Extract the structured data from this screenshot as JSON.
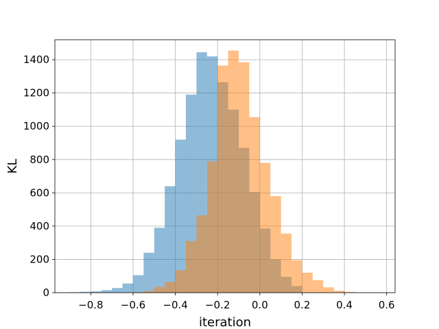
{
  "chart_data": {
    "type": "bar",
    "subtype": "histogram",
    "xlabel": "iteration",
    "ylabel": "KL",
    "xlim": [
      -0.97,
      0.64
    ],
    "ylim": [
      0,
      1520
    ],
    "xticks": [
      -0.8,
      -0.6,
      -0.4,
      -0.2,
      0.0,
      0.2,
      0.4,
      0.6
    ],
    "xtick_labels": [
      "−0.8",
      "−0.6",
      "−0.4",
      "−0.2",
      "0.0",
      "0.2",
      "0.4",
      "0.6"
    ],
    "yticks": [
      0,
      200,
      400,
      600,
      800,
      1000,
      1200,
      1400
    ],
    "ytick_labels": [
      "0",
      "200",
      "400",
      "600",
      "800",
      "1000",
      "1200",
      "1400"
    ],
    "grid": true,
    "series": [
      {
        "color": "#1f77b4",
        "alpha": 0.5,
        "bin_edges": [
          -0.95,
          -0.9,
          -0.85,
          -0.8,
          -0.75,
          -0.7,
          -0.65,
          -0.6,
          -0.55,
          -0.5,
          -0.45,
          -0.4,
          -0.35,
          -0.3,
          -0.25,
          -0.2,
          -0.15,
          -0.1,
          -0.05,
          0.0,
          0.05,
          0.1,
          0.15,
          0.2
        ],
        "counts": [
          2,
          3,
          5,
          8,
          15,
          28,
          55,
          105,
          240,
          390,
          640,
          920,
          1190,
          1445,
          1420,
          1265,
          1100,
          870,
          605,
          385,
          200,
          95,
          40
        ]
      },
      {
        "color": "#ff7f0e",
        "alpha": 0.5,
        "bin_edges": [
          -0.6,
          -0.55,
          -0.5,
          -0.45,
          -0.4,
          -0.35,
          -0.3,
          -0.25,
          -0.2,
          -0.15,
          -0.1,
          -0.05,
          0.0,
          0.05,
          0.1,
          0.15,
          0.2,
          0.25,
          0.3,
          0.35,
          0.4,
          0.45,
          0.5,
          0.55
        ],
        "counts": [
          3,
          10,
          35,
          65,
          135,
          310,
          465,
          790,
          1365,
          1455,
          1385,
          1055,
          780,
          580,
          355,
          195,
          120,
          75,
          32,
          12,
          5,
          2,
          0
        ]
      }
    ]
  }
}
